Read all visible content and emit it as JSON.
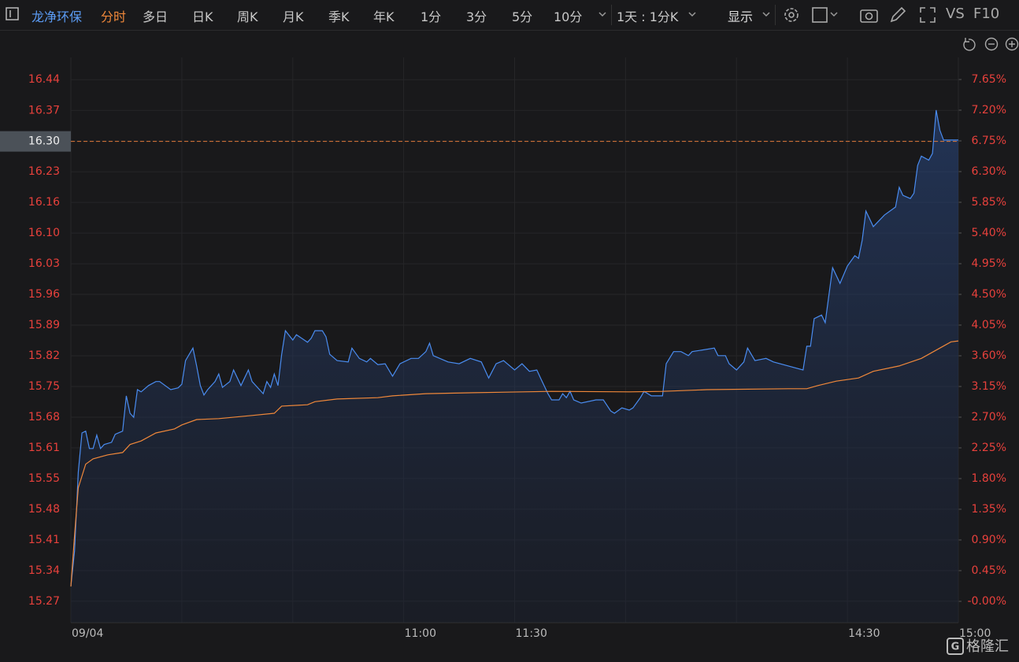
{
  "toolbar": {
    "stock_name": "龙净环保",
    "tabs": [
      "分时",
      "多日",
      "日K",
      "周K",
      "月K",
      "季K",
      "年K",
      "1分",
      "3分",
      "5分",
      "10分"
    ],
    "range": "1天 : 1分K",
    "display": "显示",
    "vs": "VS",
    "f10": "F10"
  },
  "watermark": "格隆汇",
  "chart_data": {
    "type": "line",
    "current_price": {
      "value": 16.3,
      "label": "16.30"
    },
    "xlim": [
      0,
      240
    ],
    "xticks": [
      {
        "value": 0,
        "label": "09/04"
      },
      {
        "value": 30,
        "label": null
      },
      {
        "value": 60,
        "label": null
      },
      {
        "value": 90,
        "label": "11:00"
      },
      {
        "value": 120,
        "label": "11:30"
      },
      {
        "value": 150,
        "label": null
      },
      {
        "value": 180,
        "label": null
      },
      {
        "value": 210,
        "label": "14:30"
      },
      {
        "value": 240,
        "label": "15:00"
      }
    ],
    "ylim": [
      15.222,
      16.488
    ],
    "yticks": [
      {
        "value": 15.27,
        "label": "15.27"
      },
      {
        "value": 15.3387,
        "label": "15.34"
      },
      {
        "value": 15.4074,
        "label": "15.41"
      },
      {
        "value": 15.4762,
        "label": "15.48"
      },
      {
        "value": 15.5449,
        "label": "15.55"
      },
      {
        "value": 15.6136,
        "label": "15.61"
      },
      {
        "value": 15.6823,
        "label": "15.68"
      },
      {
        "value": 15.751,
        "label": "15.75"
      },
      {
        "value": 15.8197,
        "label": "15.82"
      },
      {
        "value": 15.8884,
        "label": "15.89"
      },
      {
        "value": 15.9572,
        "label": "15.96"
      },
      {
        "value": 16.0259,
        "label": "16.03"
      },
      {
        "value": 16.0946,
        "label": "16.10"
      },
      {
        "value": 16.1633,
        "label": "16.16"
      },
      {
        "value": 16.232,
        "label": "16.23"
      },
      {
        "value": 16.3007,
        "label": "16.30"
      },
      {
        "value": 16.3694,
        "label": "16.37"
      },
      {
        "value": 16.4382,
        "label": "16.44"
      }
    ],
    "y2lim": [
      -0.312,
      7.973
    ],
    "y2ticks": [
      {
        "value": 0,
        "label": "-0.00%"
      },
      {
        "value": 0.45,
        "label": "0.45%"
      },
      {
        "value": 0.9,
        "label": "0.90%"
      },
      {
        "value": 1.35,
        "label": "1.35%"
      },
      {
        "value": 1.8,
        "label": "1.80%"
      },
      {
        "value": 2.25,
        "label": "2.25%"
      },
      {
        "value": 2.7,
        "label": "2.70%"
      },
      {
        "value": 3.15,
        "label": "3.15%"
      },
      {
        "value": 3.6,
        "label": "3.60%"
      },
      {
        "value": 4.05,
        "label": "4.05%"
      },
      {
        "value": 4.5,
        "label": "4.50%"
      },
      {
        "value": 4.95,
        "label": "4.95%"
      },
      {
        "value": 5.4,
        "label": "5.40%"
      },
      {
        "value": 5.85,
        "label": "5.85%"
      },
      {
        "value": 6.3,
        "label": "6.30%"
      },
      {
        "value": 6.75,
        "label": "6.75%"
      },
      {
        "value": 7.2,
        "label": "7.20%"
      },
      {
        "value": 7.65,
        "label": "7.65%"
      }
    ],
    "grid": true,
    "series": [
      {
        "color": "#4a8cf0",
        "area": true,
        "x": [
          0,
          1,
          2,
          3,
          4,
          5,
          6,
          7,
          8,
          9,
          11,
          12,
          14,
          15,
          16,
          17,
          18,
          19,
          21,
          23,
          24,
          27,
          29,
          30,
          31,
          33,
          34,
          35,
          36,
          37,
          39,
          40,
          41,
          43,
          44,
          46,
          48,
          49,
          52,
          53,
          54,
          55,
          56,
          57,
          58,
          60,
          61,
          64,
          65,
          66,
          68,
          69,
          70,
          72,
          75,
          76,
          78,
          80,
          81,
          83,
          85,
          87,
          89,
          92,
          94,
          96,
          97,
          98,
          102,
          105,
          108,
          111,
          113,
          115,
          117,
          120,
          122,
          124,
          126,
          127,
          129,
          130,
          132,
          133,
          134,
          135,
          136,
          138,
          142,
          144,
          146,
          147,
          149,
          151,
          152,
          154,
          155,
          157,
          160,
          161,
          163,
          165,
          167,
          168,
          174,
          175,
          177,
          178,
          180,
          182,
          183,
          185,
          188,
          190,
          198,
          199,
          200,
          201,
          203,
          204,
          206,
          208,
          210,
          212,
          213,
          214,
          215,
          217,
          220,
          223,
          224,
          225,
          227,
          228,
          229,
          230,
          232,
          233,
          234,
          235,
          236,
          240
        ],
        "values": [
          15.303,
          15.383,
          15.559,
          15.647,
          15.651,
          15.612,
          15.612,
          15.642,
          15.612,
          15.621,
          15.626,
          15.644,
          15.651,
          15.73,
          15.691,
          15.682,
          15.744,
          15.739,
          15.753,
          15.762,
          15.762,
          15.744,
          15.748,
          15.756,
          15.809,
          15.837,
          15.797,
          15.753,
          15.732,
          15.744,
          15.762,
          15.779,
          15.749,
          15.762,
          15.788,
          15.753,
          15.788,
          15.762,
          15.735,
          15.762,
          15.749,
          15.779,
          15.753,
          15.823,
          15.876,
          15.855,
          15.867,
          15.85,
          15.859,
          15.876,
          15.876,
          15.862,
          15.823,
          15.809,
          15.806,
          15.837,
          15.814,
          15.806,
          15.814,
          15.8,
          15.802,
          15.774,
          15.802,
          15.814,
          15.814,
          15.829,
          15.848,
          15.82,
          15.806,
          15.802,
          15.814,
          15.806,
          15.77,
          15.802,
          15.809,
          15.788,
          15.802,
          15.785,
          15.788,
          15.77,
          15.735,
          15.721,
          15.721,
          15.735,
          15.726,
          15.74,
          15.721,
          15.714,
          15.721,
          15.721,
          15.696,
          15.691,
          15.703,
          15.698,
          15.703,
          15.726,
          15.74,
          15.73,
          15.73,
          15.802,
          15.829,
          15.829,
          15.82,
          15.829,
          15.837,
          15.82,
          15.82,
          15.802,
          15.788,
          15.806,
          15.837,
          15.809,
          15.814,
          15.806,
          15.788,
          15.841,
          15.841,
          15.903,
          15.911,
          15.894,
          16.017,
          15.982,
          16.021,
          16.044,
          16.038,
          16.079,
          16.144,
          16.109,
          16.135,
          16.153,
          16.197,
          16.179,
          16.172,
          16.184,
          16.246,
          16.267,
          16.258,
          16.273,
          16.37,
          16.325,
          16.303,
          16.303
        ]
      },
      {
        "color": "#f0883a",
        "area": false,
        "x": [
          0,
          1,
          2,
          4,
          6,
          10,
          14,
          16,
          19,
          23,
          28,
          30,
          34,
          40,
          49,
          55,
          57,
          64,
          66,
          72,
          83,
          87,
          96,
          109,
          130,
          151,
          160,
          172,
          194,
          199,
          202,
          207,
          213,
          217,
          224,
          230,
          235,
          238,
          240
        ],
        "values": [
          15.303,
          15.418,
          15.524,
          15.577,
          15.589,
          15.598,
          15.603,
          15.621,
          15.629,
          15.647,
          15.656,
          15.665,
          15.677,
          15.679,
          15.686,
          15.691,
          15.707,
          15.71,
          15.717,
          15.723,
          15.726,
          15.73,
          15.735,
          15.737,
          15.74,
          15.739,
          15.74,
          15.744,
          15.746,
          15.746,
          15.753,
          15.763,
          15.77,
          15.785,
          15.797,
          15.814,
          15.837,
          15.851,
          15.853
        ]
      }
    ]
  }
}
